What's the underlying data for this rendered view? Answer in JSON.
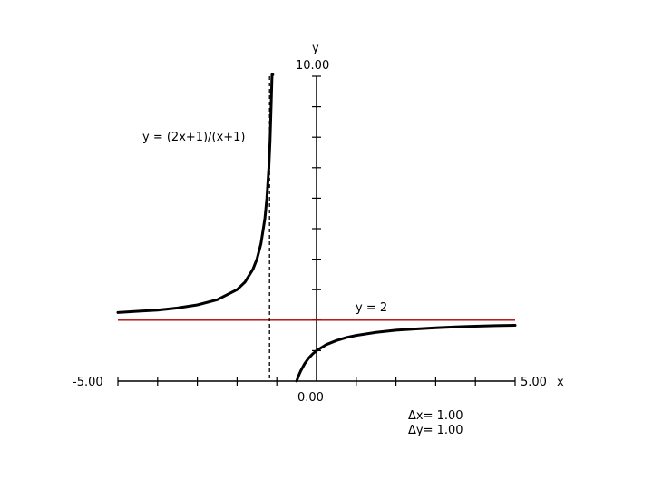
{
  "chart_data": {
    "type": "line",
    "title": "",
    "xlabel": "x",
    "ylabel": "y",
    "xlim": [
      -5,
      5
    ],
    "ylim": [
      0,
      10
    ],
    "x_min_label": "-5.00",
    "x_max_label": "5.00",
    "y_max_label": "10.00",
    "origin_label": "0.00",
    "grid": false,
    "series": [
      {
        "name": "y = (2x+1)/(x+1)",
        "segments": [
          {
            "x": [
              -5,
              -4.5,
              -4,
              -3.5,
              -3,
              -2.5,
              -2,
              -1.8,
              -1.6,
              -1.5,
              -1.4,
              -1.3,
              -1.25,
              -1.2,
              -1.17,
              -1.14,
              -1.12,
              -1.1
            ],
            "y": [
              2.25,
              2.29,
              2.33,
              2.4,
              2.5,
              2.67,
              3.0,
              3.25,
              3.67,
              4.0,
              4.5,
              5.33,
              6.0,
              7.0,
              7.88,
              9.14,
              10.33,
              12.0
            ]
          },
          {
            "x": [
              -0.5,
              -0.45,
              -0.4,
              -0.3,
              -0.2,
              -0.1,
              0,
              0.25,
              0.5,
              0.75,
              1,
              1.5,
              2,
              2.5,
              3,
              3.5,
              4,
              4.5,
              5
            ],
            "y": [
              0,
              0.18,
              0.33,
              0.57,
              0.75,
              0.89,
              1.0,
              1.2,
              1.33,
              1.43,
              1.5,
              1.6,
              1.67,
              1.71,
              1.75,
              1.78,
              1.8,
              1.82,
              1.83
            ]
          }
        ],
        "color": "#000000"
      }
    ],
    "asymptotes": {
      "horizontal": {
        "y": 2,
        "label": "y = 2",
        "color": "#aa0000"
      },
      "vertical": {
        "x": -1,
        "style": "dashed",
        "color": "#000000"
      }
    },
    "annotations": {
      "dx": "Δx= 1.00",
      "dy": "Δy= 1.00"
    }
  }
}
